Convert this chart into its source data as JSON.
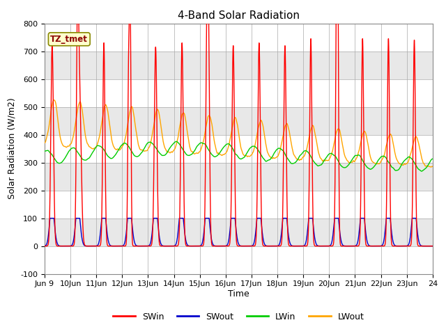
{
  "title": "4-Band Solar Radiation",
  "xlabel": "Time",
  "ylabel": "Solar Radiation (W/m2)",
  "ylim": [
    -100,
    800
  ],
  "xlim": [
    0,
    360
  ],
  "annotation": "TZ_tmet",
  "colors": {
    "SWin": "#ff0000",
    "SWout": "#0000cc",
    "LWin": "#00cc00",
    "LWout": "#ffa500"
  },
  "legend_labels": [
    "SWin",
    "SWout",
    "LWin",
    "LWout"
  ],
  "xtick_labels": [
    "Jun 9",
    "10Jun",
    "11Jun",
    "12Jun",
    "13Jun",
    "14Jun",
    "15Jun",
    "16Jun",
    "17Jun",
    "18Jun",
    "19Jun",
    "20Jun",
    "21Jun",
    "22Jun",
    "23Jun",
    "24"
  ],
  "title_fontsize": 11,
  "axis_fontsize": 9,
  "tick_fontsize": 8,
  "band_colors": [
    "#ffffff",
    "#e8e8e8",
    "#ffffff",
    "#e8e8e8",
    "#ffffff",
    "#e8e8e8",
    "#ffffff",
    "#e8e8e8",
    "#ffffff"
  ],
  "yticks": [
    -100,
    0,
    100,
    200,
    300,
    400,
    500,
    600,
    700,
    800
  ]
}
